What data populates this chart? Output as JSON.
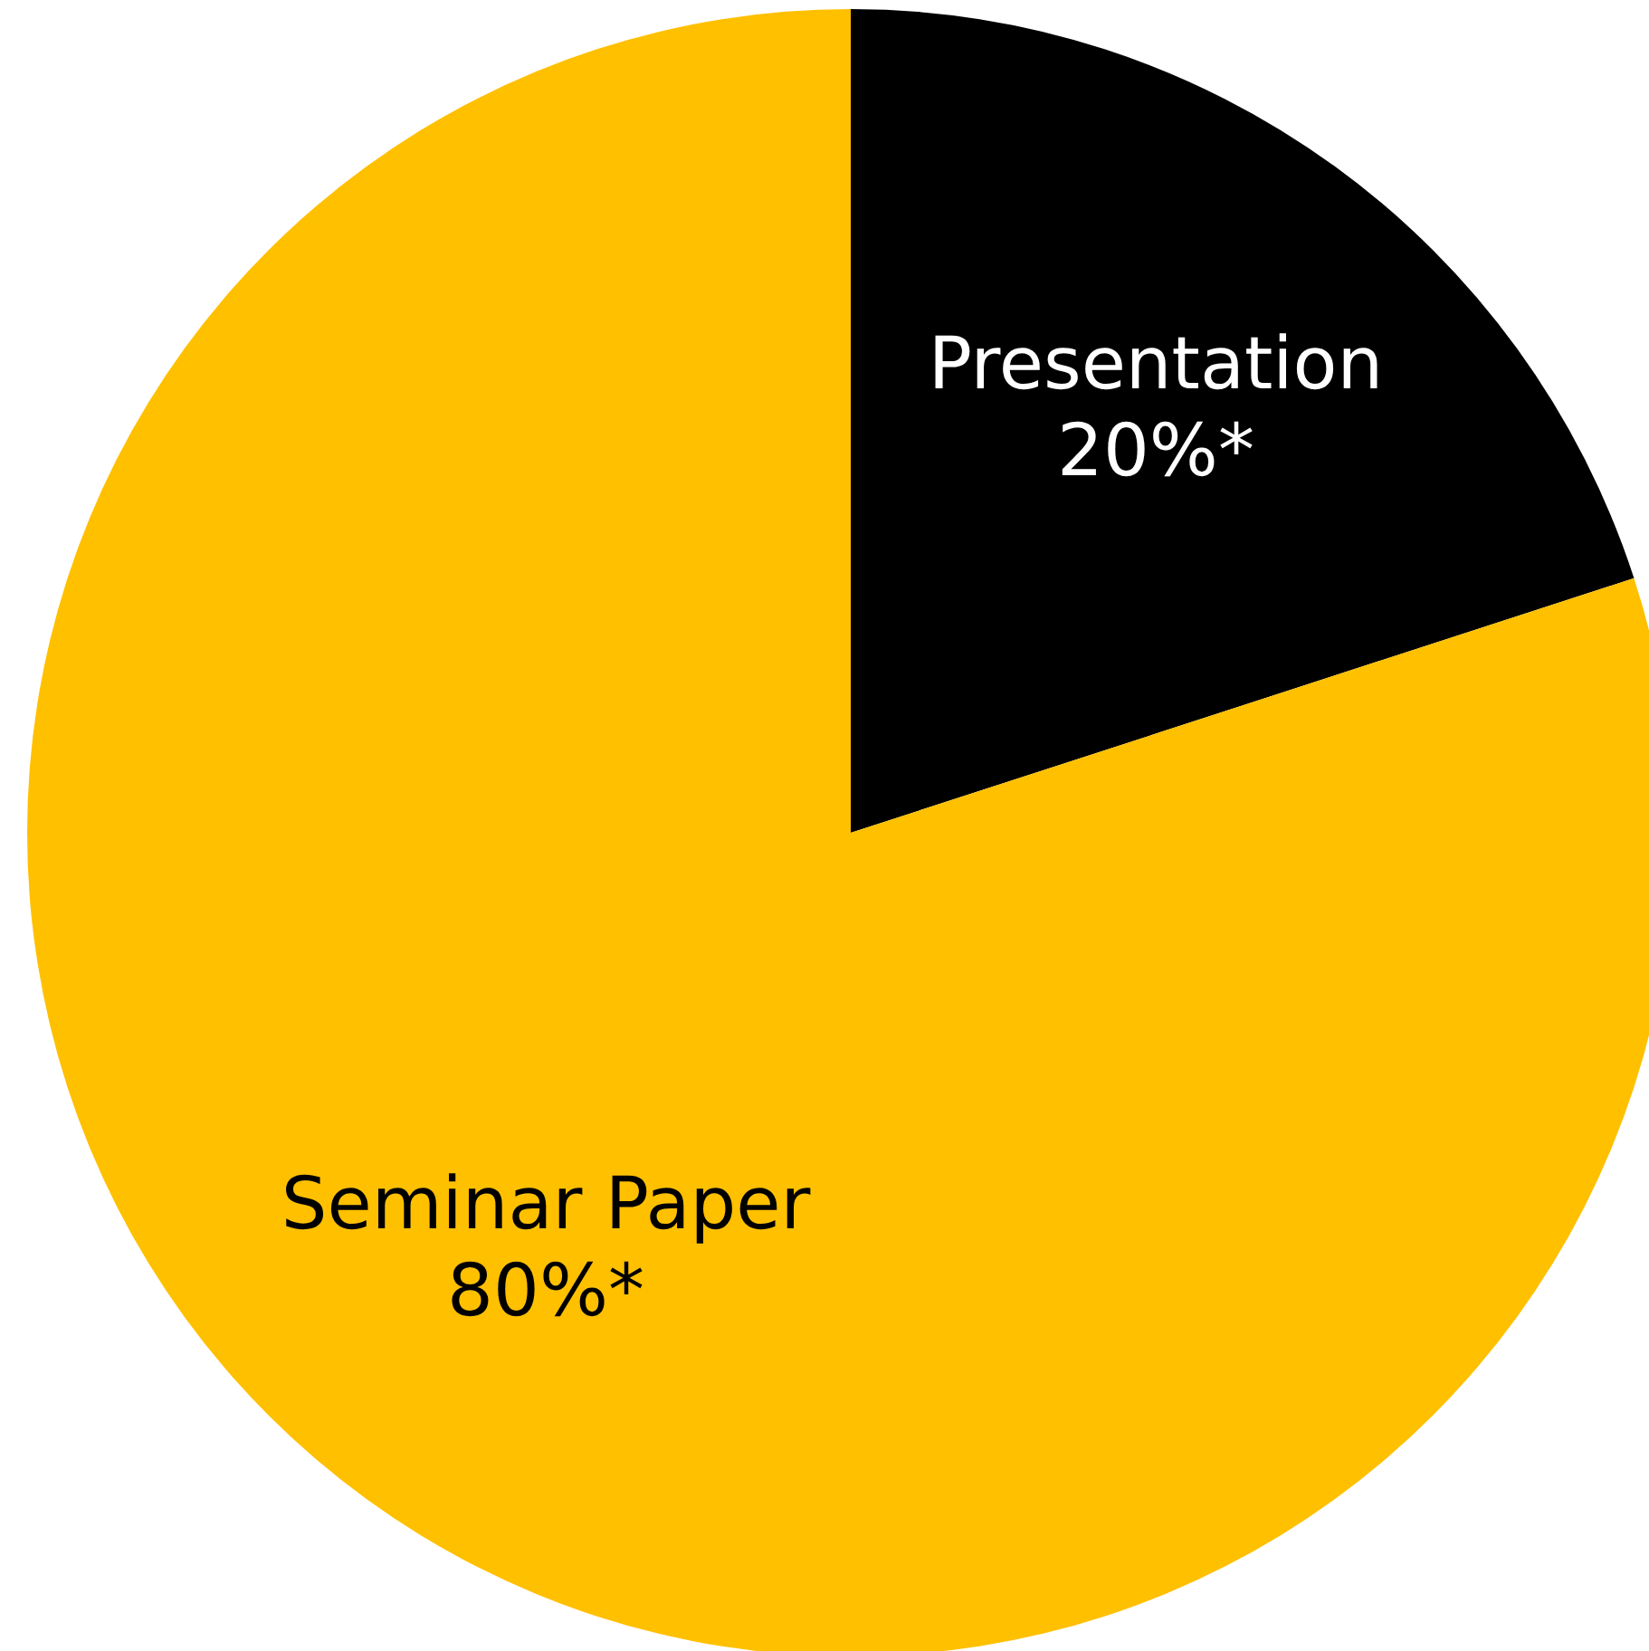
{
  "chart_data": {
    "type": "pie",
    "categories": [
      "Presentation",
      "Seminar Paper"
    ],
    "values": [
      20,
      80
    ],
    "colors": [
      "#000000",
      "#ffc000"
    ],
    "value_labels": [
      "20%*",
      "80%*"
    ],
    "legend": false
  }
}
